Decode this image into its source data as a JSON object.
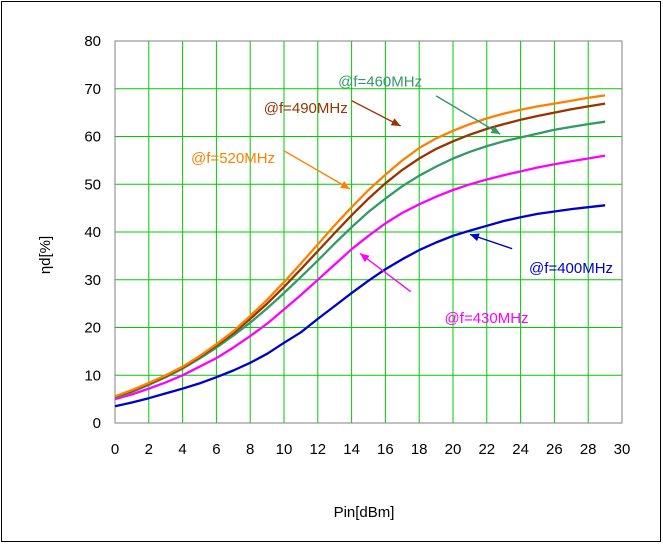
{
  "chart_data": {
    "type": "line",
    "xlabel": "Pin[dBm]",
    "ylabel": "ηd[%]",
    "xlim": [
      0,
      30
    ],
    "ylim": [
      0,
      80
    ],
    "xticks": [
      "0",
      "2",
      "4",
      "6",
      "8",
      "10",
      "12",
      "14",
      "16",
      "18",
      "20",
      "22",
      "24",
      "26",
      "28",
      "30"
    ],
    "yticks": [
      "0",
      "10",
      "20",
      "30",
      "40",
      "50",
      "60",
      "70",
      "80"
    ],
    "grid": true,
    "grid_color": "#00cc00",
    "x": [
      0,
      1,
      2,
      3,
      4,
      5,
      6,
      7,
      8,
      9,
      10,
      11,
      12,
      13,
      14,
      15,
      16,
      17,
      18,
      19,
      20,
      21,
      22,
      23,
      24,
      25,
      26,
      27,
      28,
      29
    ],
    "series": [
      {
        "name": "@f=400MHz",
        "color": "#0000cc",
        "values": [
          3.5,
          4.3,
          5.2,
          6.2,
          7.2,
          8.3,
          9.6,
          11.0,
          12.6,
          14.5,
          16.8,
          19.0,
          21.8,
          24.5,
          27.2,
          29.8,
          32.2,
          34.3,
          36.2,
          37.8,
          39.2,
          40.3,
          41.3,
          42.3,
          43.1,
          43.8,
          44.3,
          44.8,
          45.2,
          45.6
        ],
        "annotation": {
          "text": "@f=400MHz",
          "label_x": 24.5,
          "label_y": 32.5,
          "arrow_from": [
            23.5,
            36.5
          ],
          "arrow_to": [
            21.0,
            39.5
          ]
        }
      },
      {
        "name": "@f=430MHz",
        "color": "#ff00ff",
        "values": [
          5.0,
          6.0,
          7.2,
          8.5,
          10.0,
          11.8,
          13.6,
          15.8,
          18.2,
          20.8,
          23.8,
          26.8,
          30.0,
          33.2,
          36.4,
          39.2,
          41.8,
          44.0,
          45.8,
          47.4,
          48.8,
          50.0,
          51.0,
          51.9,
          52.7,
          53.5,
          54.2,
          54.8,
          55.4,
          56.0
        ],
        "annotation": {
          "text": "@f=430MHz",
          "label_x": 19.5,
          "label_y": 22.0,
          "arrow_from": [
            17.5,
            27.5
          ],
          "arrow_to": [
            14.5,
            35.5
          ]
        }
      },
      {
        "name": "@f=460MHz",
        "color": "#339966",
        "values": [
          5.3,
          6.5,
          8.0,
          9.6,
          11.4,
          13.5,
          15.8,
          18.3,
          21.0,
          24.0,
          27.2,
          30.6,
          34.0,
          37.6,
          41.0,
          44.2,
          47.0,
          49.6,
          51.8,
          53.7,
          55.4,
          56.8,
          58.0,
          59.0,
          59.8,
          60.6,
          61.4,
          62.0,
          62.6,
          63.1
        ],
        "annotation": {
          "text": "@f=460MHz",
          "label_x": 13.2,
          "label_y": 71.5,
          "arrow_from": [
            19.0,
            68.5
          ],
          "arrow_to": [
            22.8,
            60.5
          ]
        }
      },
      {
        "name": "@f=490MHz",
        "color": "#993300",
        "values": [
          5.5,
          6.7,
          8.2,
          9.8,
          11.6,
          13.8,
          16.2,
          18.8,
          21.8,
          25.0,
          28.5,
          32.2,
          36.0,
          39.8,
          43.5,
          47.0,
          50.2,
          53.0,
          55.4,
          57.4,
          59.0,
          60.4,
          61.6,
          62.6,
          63.5,
          64.3,
          65.0,
          65.7,
          66.3,
          66.9
        ],
        "annotation": {
          "text": "@f=490MHz",
          "label_x": 8.8,
          "label_y": 66.0,
          "arrow_from": [
            14.0,
            67.5
          ],
          "arrow_to": [
            16.9,
            62.2
          ]
        }
      },
      {
        "name": "@f=520MHz",
        "color": "#ff8000",
        "values": [
          5.6,
          6.9,
          8.4,
          10.0,
          11.8,
          14.0,
          16.5,
          19.2,
          22.4,
          25.8,
          29.5,
          33.4,
          37.4,
          41.4,
          45.2,
          48.8,
          52.0,
          55.0,
          57.6,
          59.6,
          61.2,
          62.6,
          63.8,
          64.8,
          65.6,
          66.3,
          66.9,
          67.5,
          68.1,
          68.6
        ],
        "annotation": {
          "text": "@f=520MHz",
          "label_x": 4.5,
          "label_y": 55.5,
          "arrow_from": [
            10.0,
            57.0
          ],
          "arrow_to": [
            13.9,
            49.0
          ]
        }
      }
    ]
  }
}
